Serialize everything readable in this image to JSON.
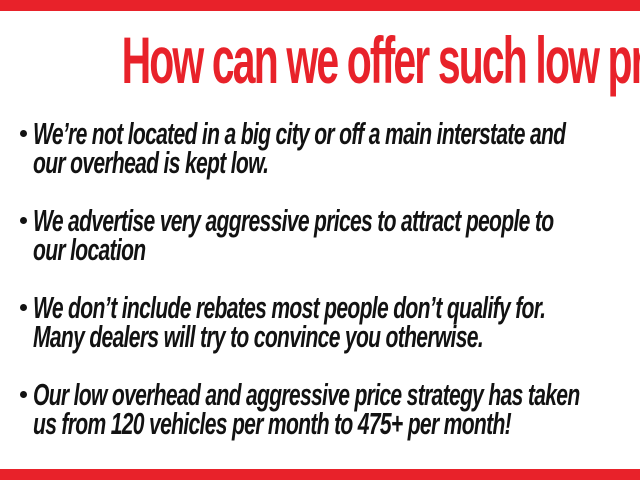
{
  "colors": {
    "accent_red": "#e8222a",
    "text_black": "#121212",
    "background": "#ffffff"
  },
  "slide": {
    "title": "How can we offer such low prices?",
    "bullets": [
      {
        "line1": "We’re not located in a big city or off a main interstate and",
        "line2": "our overhead is kept low."
      },
      {
        "line1": "We advertise very aggressive prices to attract people to",
        "line2": "our location"
      },
      {
        "line1": "We don’t include rebates most people don’t qualify for.",
        "line2": "Many dealers will try to convince you otherwise."
      },
      {
        "line1": "Our low overhead and aggressive price strategy has taken",
        "line2": "us from 120 vehicles per month to 475+ per month!"
      }
    ]
  }
}
